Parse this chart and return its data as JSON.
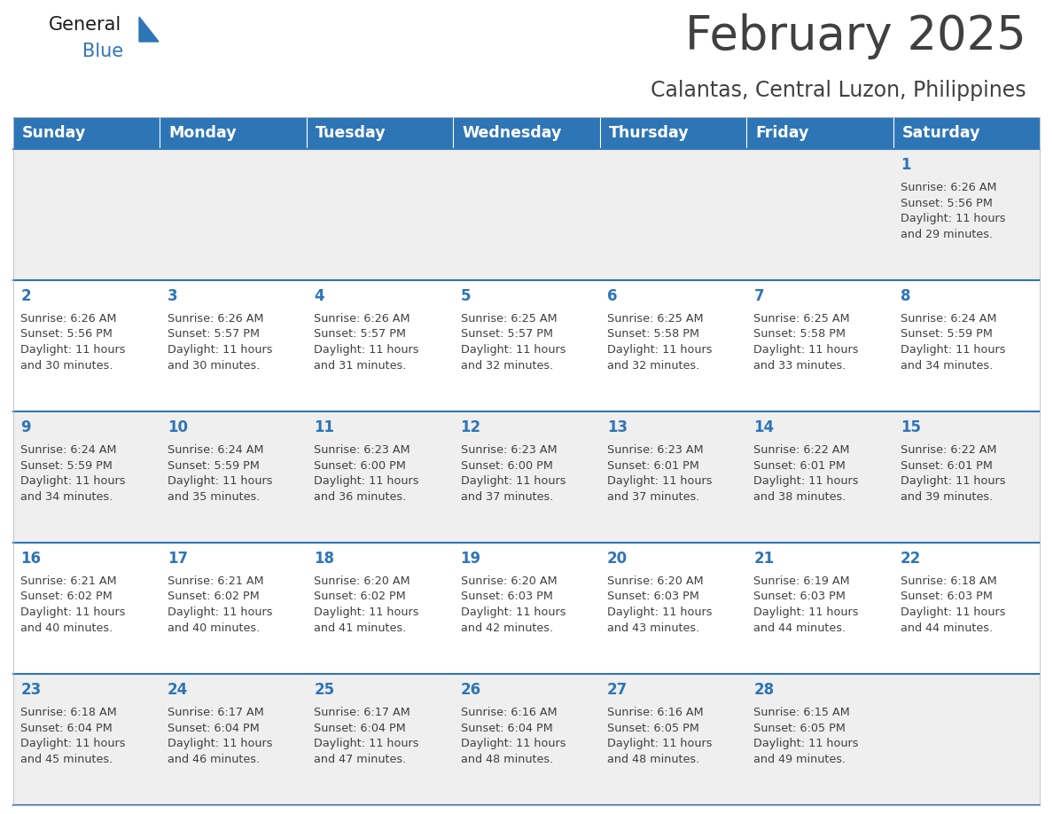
{
  "title": "February 2025",
  "subtitle": "Calantas, Central Luzon, Philippines",
  "header_bg": "#2E75B6",
  "header_text_color": "#FFFFFF",
  "cell_bg_light": "#EFEFEF",
  "cell_bg_white": "#FFFFFF",
  "day_number_color": "#2E75B6",
  "text_color": "#404040",
  "line_color": "#2E75B6",
  "days_of_week": [
    "Sunday",
    "Monday",
    "Tuesday",
    "Wednesday",
    "Thursday",
    "Friday",
    "Saturday"
  ],
  "weeks": [
    [
      {
        "day": null,
        "info": null
      },
      {
        "day": null,
        "info": null
      },
      {
        "day": null,
        "info": null
      },
      {
        "day": null,
        "info": null
      },
      {
        "day": null,
        "info": null
      },
      {
        "day": null,
        "info": null
      },
      {
        "day": 1,
        "info": "Sunrise: 6:26 AM\nSunset: 5:56 PM\nDaylight: 11 hours\nand 29 minutes."
      }
    ],
    [
      {
        "day": 2,
        "info": "Sunrise: 6:26 AM\nSunset: 5:56 PM\nDaylight: 11 hours\nand 30 minutes."
      },
      {
        "day": 3,
        "info": "Sunrise: 6:26 AM\nSunset: 5:57 PM\nDaylight: 11 hours\nand 30 minutes."
      },
      {
        "day": 4,
        "info": "Sunrise: 6:26 AM\nSunset: 5:57 PM\nDaylight: 11 hours\nand 31 minutes."
      },
      {
        "day": 5,
        "info": "Sunrise: 6:25 AM\nSunset: 5:57 PM\nDaylight: 11 hours\nand 32 minutes."
      },
      {
        "day": 6,
        "info": "Sunrise: 6:25 AM\nSunset: 5:58 PM\nDaylight: 11 hours\nand 32 minutes."
      },
      {
        "day": 7,
        "info": "Sunrise: 6:25 AM\nSunset: 5:58 PM\nDaylight: 11 hours\nand 33 minutes."
      },
      {
        "day": 8,
        "info": "Sunrise: 6:24 AM\nSunset: 5:59 PM\nDaylight: 11 hours\nand 34 minutes."
      }
    ],
    [
      {
        "day": 9,
        "info": "Sunrise: 6:24 AM\nSunset: 5:59 PM\nDaylight: 11 hours\nand 34 minutes."
      },
      {
        "day": 10,
        "info": "Sunrise: 6:24 AM\nSunset: 5:59 PM\nDaylight: 11 hours\nand 35 minutes."
      },
      {
        "day": 11,
        "info": "Sunrise: 6:23 AM\nSunset: 6:00 PM\nDaylight: 11 hours\nand 36 minutes."
      },
      {
        "day": 12,
        "info": "Sunrise: 6:23 AM\nSunset: 6:00 PM\nDaylight: 11 hours\nand 37 minutes."
      },
      {
        "day": 13,
        "info": "Sunrise: 6:23 AM\nSunset: 6:01 PM\nDaylight: 11 hours\nand 37 minutes."
      },
      {
        "day": 14,
        "info": "Sunrise: 6:22 AM\nSunset: 6:01 PM\nDaylight: 11 hours\nand 38 minutes."
      },
      {
        "day": 15,
        "info": "Sunrise: 6:22 AM\nSunset: 6:01 PM\nDaylight: 11 hours\nand 39 minutes."
      }
    ],
    [
      {
        "day": 16,
        "info": "Sunrise: 6:21 AM\nSunset: 6:02 PM\nDaylight: 11 hours\nand 40 minutes."
      },
      {
        "day": 17,
        "info": "Sunrise: 6:21 AM\nSunset: 6:02 PM\nDaylight: 11 hours\nand 40 minutes."
      },
      {
        "day": 18,
        "info": "Sunrise: 6:20 AM\nSunset: 6:02 PM\nDaylight: 11 hours\nand 41 minutes."
      },
      {
        "day": 19,
        "info": "Sunrise: 6:20 AM\nSunset: 6:03 PM\nDaylight: 11 hours\nand 42 minutes."
      },
      {
        "day": 20,
        "info": "Sunrise: 6:20 AM\nSunset: 6:03 PM\nDaylight: 11 hours\nand 43 minutes."
      },
      {
        "day": 21,
        "info": "Sunrise: 6:19 AM\nSunset: 6:03 PM\nDaylight: 11 hours\nand 44 minutes."
      },
      {
        "day": 22,
        "info": "Sunrise: 6:18 AM\nSunset: 6:03 PM\nDaylight: 11 hours\nand 44 minutes."
      }
    ],
    [
      {
        "day": 23,
        "info": "Sunrise: 6:18 AM\nSunset: 6:04 PM\nDaylight: 11 hours\nand 45 minutes."
      },
      {
        "day": 24,
        "info": "Sunrise: 6:17 AM\nSunset: 6:04 PM\nDaylight: 11 hours\nand 46 minutes."
      },
      {
        "day": 25,
        "info": "Sunrise: 6:17 AM\nSunset: 6:04 PM\nDaylight: 11 hours\nand 47 minutes."
      },
      {
        "day": 26,
        "info": "Sunrise: 6:16 AM\nSunset: 6:04 PM\nDaylight: 11 hours\nand 48 minutes."
      },
      {
        "day": 27,
        "info": "Sunrise: 6:16 AM\nSunset: 6:05 PM\nDaylight: 11 hours\nand 48 minutes."
      },
      {
        "day": 28,
        "info": "Sunrise: 6:15 AM\nSunset: 6:05 PM\nDaylight: 11 hours\nand 49 minutes."
      },
      {
        "day": null,
        "info": null
      }
    ]
  ],
  "logo_text_general": "General",
  "logo_text_blue": "Blue",
  "logo_color_general": "#1a1a1a",
  "logo_color_blue": "#2E75B6",
  "title_fontsize": 38,
  "subtitle_fontsize": 17,
  "header_fontsize": 12.5,
  "day_num_fontsize": 12,
  "cell_text_fontsize": 9.2
}
